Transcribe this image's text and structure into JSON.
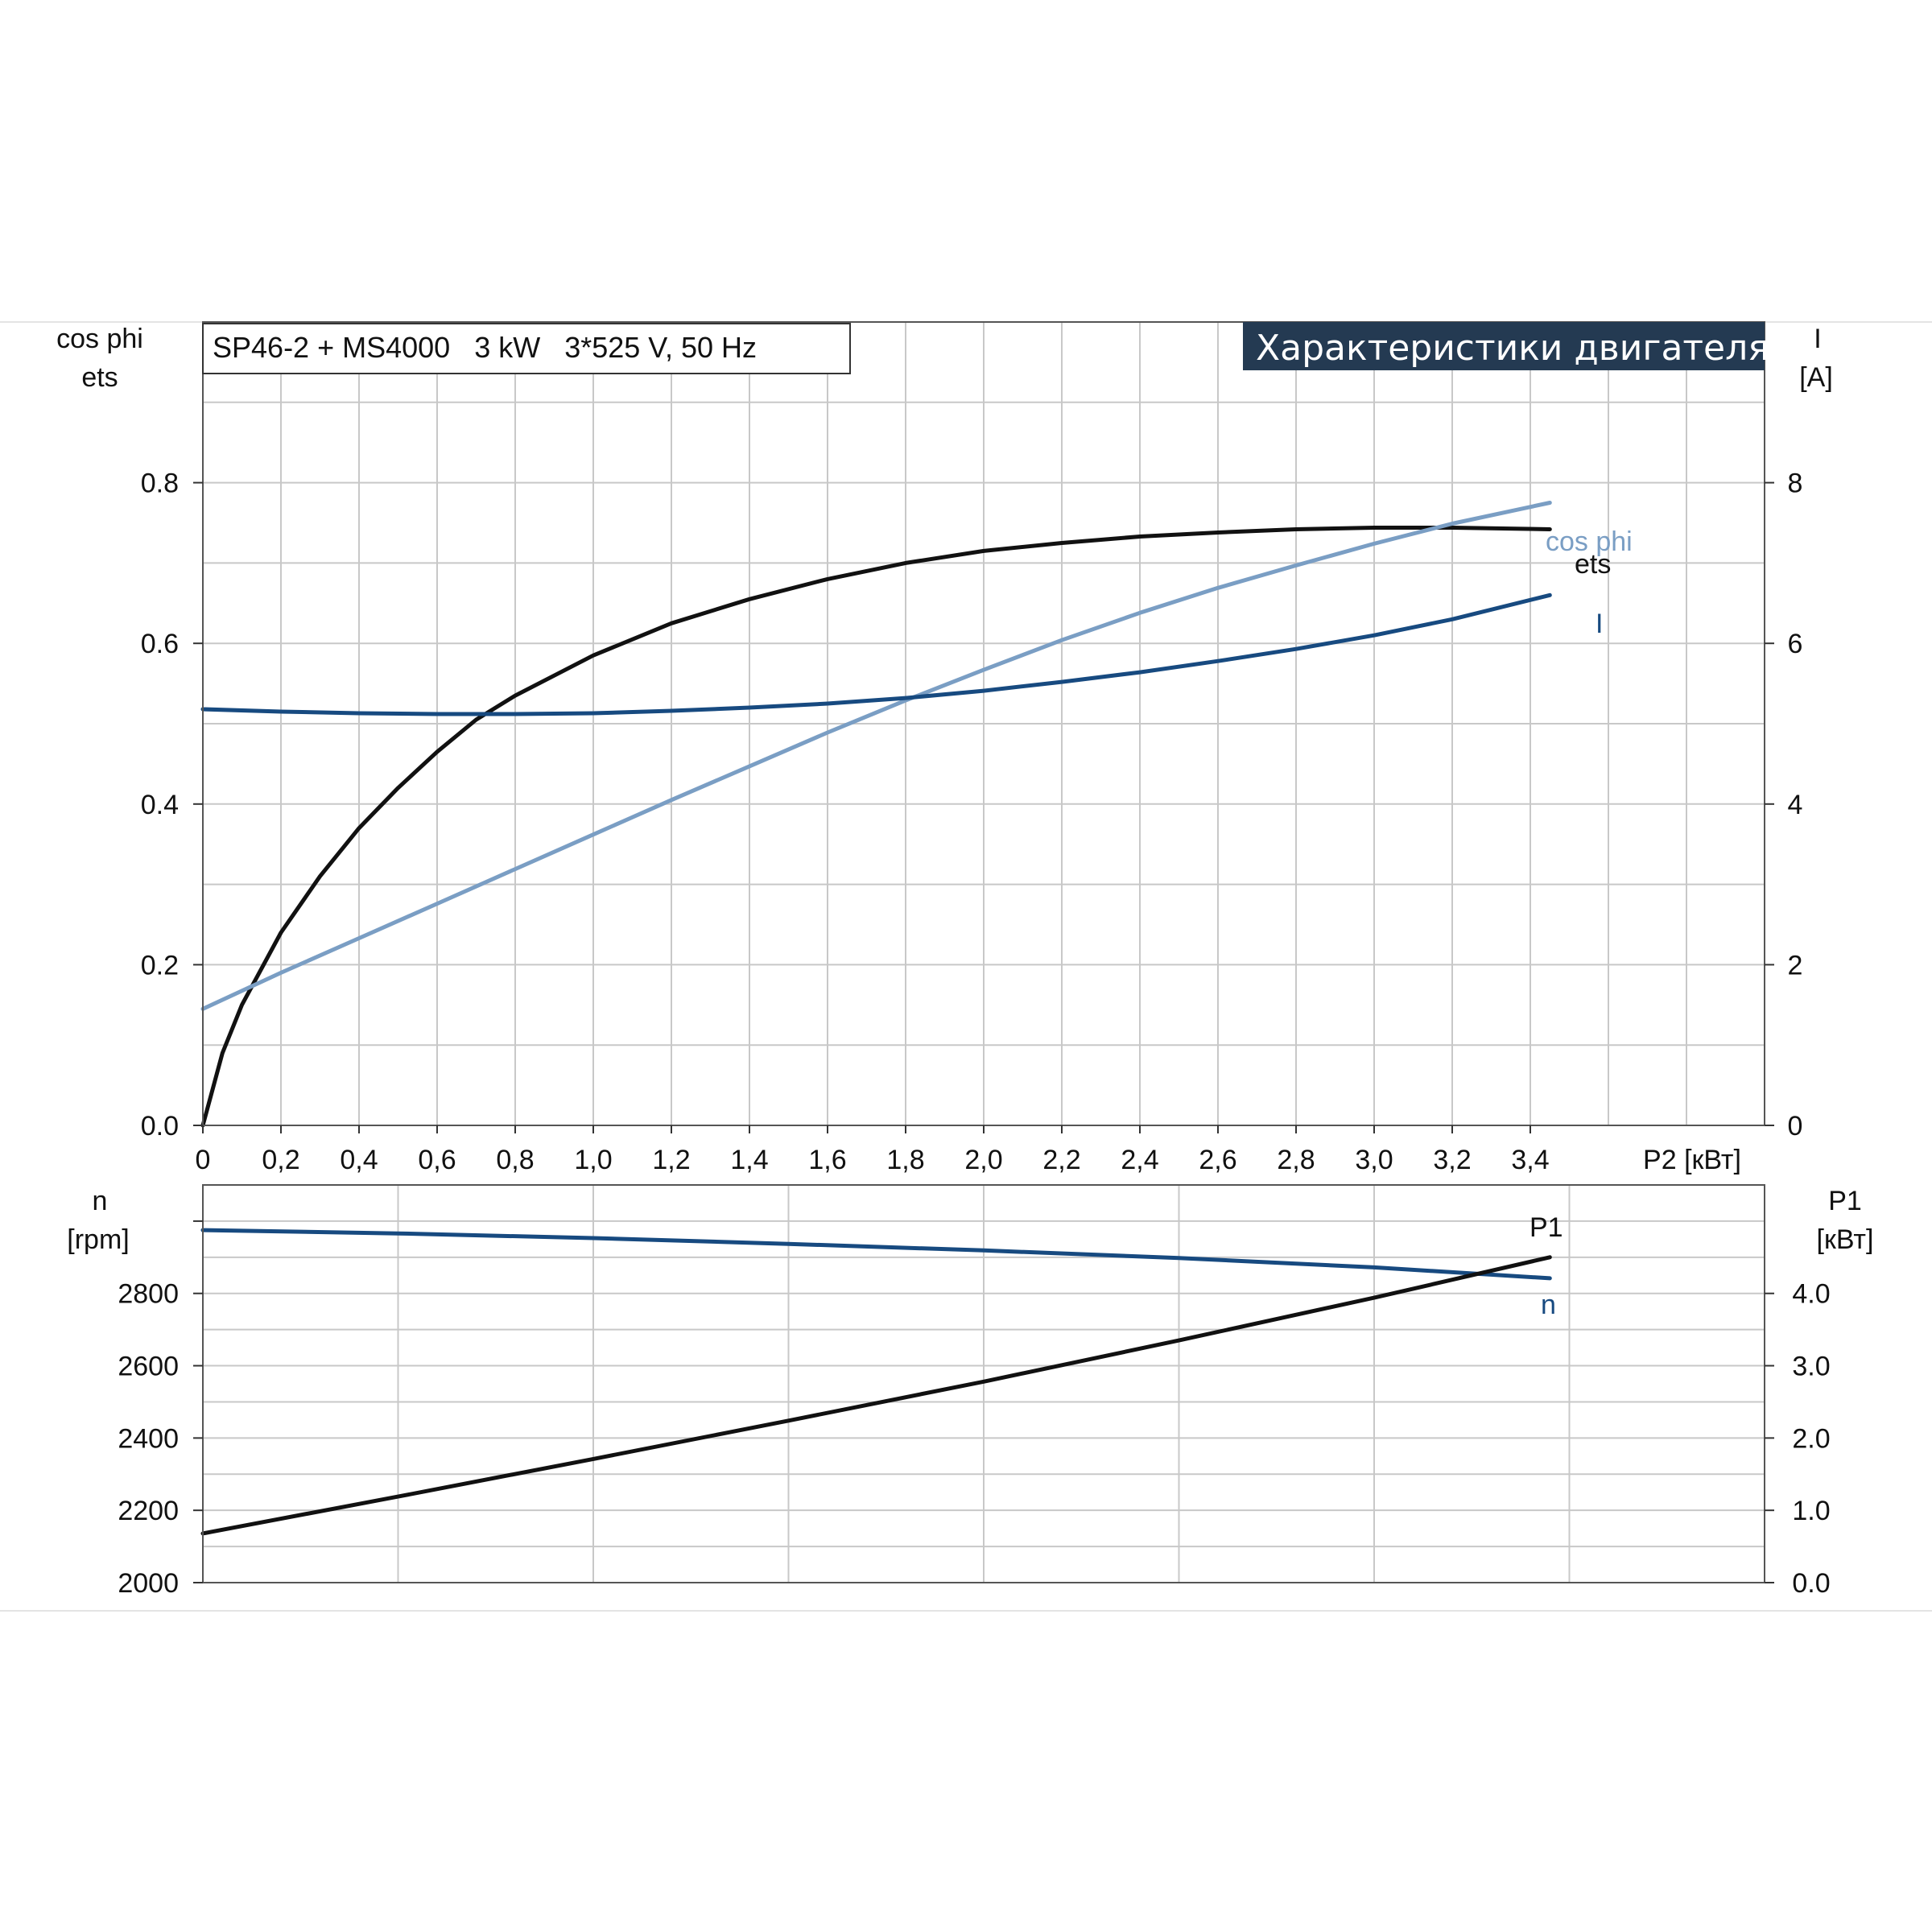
{
  "title": "SP46-2 + MS4000   3 kW   3*525 V, 50 Hz",
  "badge": "Характеристики двигателя",
  "colors": {
    "ets": "#111111",
    "cos_phi": "#7a9ec4",
    "I": "#174a80",
    "n": "#174a80",
    "P1": "#111111",
    "badge_bg": "#243a52",
    "grid": "#c8c8c8"
  },
  "chart_data": [
    {
      "type": "line",
      "x_label": "P2 [кВт]",
      "xlim": [
        0,
        4.0
      ],
      "x_ticks": [
        "0",
        "0,2",
        "0,4",
        "0,6",
        "0,8",
        "1,0",
        "1,2",
        "1,4",
        "1,6",
        "1,8",
        "2,0",
        "2,2",
        "2,4",
        "2,6",
        "2,8",
        "3,0",
        "3,2",
        "3,4"
      ],
      "y_label_left": [
        "cos phi",
        "ets"
      ],
      "ylim_left": [
        0,
        1.0
      ],
      "y_ticks_left": [
        "0.0",
        "0.2",
        "0.4",
        "0.6",
        "0.8"
      ],
      "y_label_right": [
        "I",
        "[A]"
      ],
      "ylim_right": [
        0,
        10
      ],
      "y_ticks_right": [
        "0",
        "2",
        "4",
        "6",
        "8"
      ],
      "grid": true,
      "series": [
        {
          "name": "ets",
          "axis": "left",
          "x": [
            0,
            0.05,
            0.1,
            0.2,
            0.3,
            0.4,
            0.5,
            0.6,
            0.7,
            0.8,
            1.0,
            1.2,
            1.4,
            1.6,
            1.8,
            2.0,
            2.2,
            2.4,
            2.6,
            2.8,
            3.0,
            3.2,
            3.45
          ],
          "y": [
            0,
            0.09,
            0.15,
            0.24,
            0.31,
            0.37,
            0.42,
            0.465,
            0.505,
            0.535,
            0.585,
            0.625,
            0.655,
            0.68,
            0.7,
            0.715,
            0.725,
            0.733,
            0.738,
            0.742,
            0.744,
            0.744,
            0.742
          ]
        },
        {
          "name": "cos phi",
          "axis": "left",
          "x": [
            0,
            0.2,
            0.4,
            0.6,
            0.8,
            1.0,
            1.2,
            1.4,
            1.6,
            1.8,
            2.0,
            2.2,
            2.4,
            2.6,
            2.8,
            3.0,
            3.2,
            3.45
          ],
          "y": [
            0.145,
            0.19,
            0.233,
            0.276,
            0.319,
            0.362,
            0.405,
            0.447,
            0.489,
            0.529,
            0.567,
            0.604,
            0.638,
            0.669,
            0.697,
            0.724,
            0.749,
            0.775
          ]
        },
        {
          "name": "I",
          "axis": "right",
          "x": [
            0,
            0.2,
            0.4,
            0.6,
            0.8,
            1.0,
            1.2,
            1.4,
            1.6,
            1.8,
            2.0,
            2.2,
            2.4,
            2.6,
            2.8,
            3.0,
            3.2,
            3.45
          ],
          "y": [
            5.18,
            5.15,
            5.13,
            5.12,
            5.12,
            5.13,
            5.16,
            5.2,
            5.25,
            5.32,
            5.41,
            5.52,
            5.64,
            5.78,
            5.93,
            6.1,
            6.3,
            6.6
          ]
        }
      ]
    },
    {
      "type": "line",
      "xlim": [
        0,
        4.0
      ],
      "y_label_left": [
        "n",
        "[rpm]"
      ],
      "ylim_left": [
        2000,
        3100
      ],
      "y_ticks_left": [
        "2000",
        "2200",
        "2400",
        "2600",
        "2800"
      ],
      "y_label_right": [
        "P1",
        "[кВт]"
      ],
      "ylim_right": [
        0,
        5.5
      ],
      "y_ticks_right": [
        "0.0",
        "1.0",
        "2.0",
        "3.0",
        "4.0"
      ],
      "grid": true,
      "series": [
        {
          "name": "n",
          "axis": "left",
          "x": [
            0,
            0.5,
            1.0,
            1.5,
            2.0,
            2.5,
            3.0,
            3.45
          ],
          "y": [
            2975,
            2966,
            2953,
            2937,
            2919,
            2898,
            2872,
            2842
          ]
        },
        {
          "name": "P1",
          "axis": "right",
          "x": [
            0,
            0.5,
            1.0,
            1.5,
            2.0,
            2.5,
            3.0,
            3.45
          ],
          "y": [
            0.68,
            1.19,
            1.71,
            2.24,
            2.78,
            3.35,
            3.94,
            4.5
          ]
        }
      ]
    }
  ]
}
